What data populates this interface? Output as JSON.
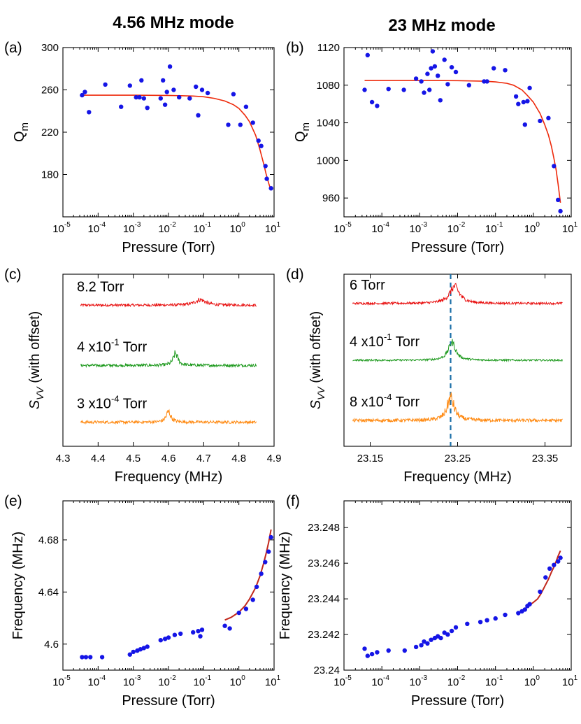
{
  "column_titles": [
    "4.56 MHz mode",
    "23 MHz mode"
  ],
  "colors": {
    "points": "#1515e6",
    "fit": "#ee2a0b",
    "fit_dark": "#c1271b",
    "red": "#e81010",
    "green": "#1f9a1f",
    "orange": "#ff8a12",
    "dashed": "#1b6fa8"
  },
  "chart_data": [
    {
      "panel": "(a)",
      "type": "scatter",
      "xlabel": "Pressure (Torr)",
      "ylabel": "Q_m",
      "xscale": "log",
      "xlim": [
        1e-05,
        10
      ],
      "ylim": [
        140,
        300
      ],
      "xticks": [
        1e-05,
        0.0001,
        0.001,
        0.01,
        0.1,
        1,
        10
      ],
      "xtick_labels": [
        [
          "10",
          "-5"
        ],
        [
          "10",
          "-4"
        ],
        [
          "10",
          "-3"
        ],
        [
          "10",
          "-2"
        ],
        [
          "10",
          "-1"
        ],
        [
          "10",
          "0"
        ],
        [
          "10",
          "1"
        ]
      ],
      "yticks": [
        180,
        220,
        260,
        300
      ],
      "ytick_labels": [
        "180",
        "220",
        "260",
        "300"
      ],
      "series": [
        {
          "kind": "points",
          "x": [
            3.5e-05,
            4.2e-05,
            5.5e-05,
            0.00016,
            0.00045,
            0.0008,
            0.0012,
            0.0015,
            0.0017,
            0.002,
            0.0025,
            0.006,
            0.007,
            0.008,
            0.009,
            0.011,
            0.014,
            0.02,
            0.04,
            0.06,
            0.07,
            0.09,
            0.13,
            0.5,
            0.7,
            1.1,
            1.6,
            2.5,
            3.6,
            4.3,
            5.7,
            6.2,
            8.2
          ],
          "y": [
            255,
            258,
            239,
            265,
            244,
            264,
            253,
            253,
            269,
            252,
            243,
            252,
            269,
            246,
            258,
            282,
            260,
            253,
            252,
            263,
            236,
            260,
            257,
            227,
            256,
            227,
            244,
            229,
            212,
            207,
            188,
            176,
            167
          ]
        },
        {
          "kind": "fit",
          "x": [
            3.5e-05,
            0.0001,
            0.001,
            0.01,
            0.05,
            0.1,
            0.2,
            0.4,
            0.7,
            1,
            1.5,
            2,
            3,
            4,
            5,
            6,
            7,
            8.2
          ],
          "y": [
            255,
            255,
            255,
            254.8,
            254.2,
            253.5,
            252,
            249.5,
            246,
            242.5,
            236,
            230,
            217,
            203,
            191,
            180,
            172,
            165
          ]
        }
      ]
    },
    {
      "panel": "(b)",
      "type": "scatter",
      "xlabel": "Pressure (Torr)",
      "ylabel": "Q_m",
      "xscale": "log",
      "xlim": [
        1e-05,
        10
      ],
      "ylim": [
        940,
        1120
      ],
      "xticks": [
        1e-05,
        0.0001,
        0.001,
        0.01,
        0.1,
        1,
        10
      ],
      "xtick_labels": [
        [
          "10",
          "-5"
        ],
        [
          "10",
          "-4"
        ],
        [
          "10",
          "-3"
        ],
        [
          "10",
          "-2"
        ],
        [
          "10",
          "-1"
        ],
        [
          "10",
          "0"
        ],
        [
          "10",
          "1"
        ]
      ],
      "yticks": [
        960,
        1000,
        1040,
        1080,
        1120
      ],
      "ytick_labels": [
        "960",
        "1000",
        "1040",
        "1080",
        "1120"
      ],
      "series": [
        {
          "kind": "points",
          "x": [
            3.5e-05,
            4.2e-05,
            5.5e-05,
            7.5e-05,
            0.00015,
            0.00038,
            0.0008,
            0.0011,
            0.0013,
            0.0016,
            0.0018,
            0.002,
            0.0022,
            0.0025,
            0.003,
            0.0035,
            0.0045,
            0.0055,
            0.007,
            0.009,
            0.02,
            0.05,
            0.06,
            0.09,
            0.18,
            0.35,
            0.4,
            0.55,
            0.6,
            0.7,
            0.8,
            1.5,
            2.5,
            3.5,
            4.5,
            5.2
          ],
          "y": [
            1075,
            1112,
            1062,
            1058,
            1076,
            1075,
            1087,
            1084,
            1072,
            1092,
            1075,
            1098,
            1116,
            1100,
            1090,
            1064,
            1107,
            1081,
            1099,
            1094,
            1080,
            1084,
            1084,
            1098,
            1096,
            1068,
            1060,
            1062,
            1038,
            1063,
            1077,
            1042,
            1045,
            994,
            958,
            946
          ]
        },
        {
          "kind": "fit",
          "x": [
            3.5e-05,
            0.0001,
            0.001,
            0.01,
            0.05,
            0.1,
            0.2,
            0.3,
            0.5,
            0.7,
            1,
            1.5,
            2,
            2.5,
            3,
            3.5,
            4,
            4.5,
            5.2
          ],
          "y": [
            1085,
            1085,
            1085,
            1084.8,
            1084.2,
            1083.5,
            1082,
            1080,
            1075,
            1069,
            1062,
            1050,
            1038,
            1027,
            1015,
            1002,
            990,
            975,
            955
          ]
        }
      ]
    },
    {
      "panel": "(c)",
      "type": "line",
      "xlabel": "Frequency (MHz)",
      "ylabel": "S_VV (with offset)",
      "xlim": [
        4.3,
        4.9
      ],
      "xticks": [
        4.3,
        4.4,
        4.5,
        4.6,
        4.7,
        4.8,
        4.9
      ],
      "xtick_labels": [
        "4.3",
        "4.4",
        "4.5",
        "4.6",
        "4.7",
        "4.8",
        "4.9"
      ],
      "series": [
        {
          "name_base": "8.2",
          "name_exp": "",
          "name_unit": "Torr",
          "color": "red",
          "x_range": [
            4.35,
            4.85
          ],
          "peak": 4.69,
          "width": 0.018,
          "amp": 0.8,
          "noise": 0.35,
          "level": 0.82
        },
        {
          "name_base": "4 x10",
          "name_exp": "-1",
          "name_unit": "Torr",
          "color": "green",
          "x_range": [
            4.35,
            4.85
          ],
          "peak": 4.62,
          "width": 0.008,
          "amp": 1.7,
          "noise": 0.4,
          "level": 0.47
        },
        {
          "name_base": "3 x10",
          "name_exp": "-4",
          "name_unit": "Torr",
          "color": "orange",
          "x_range": [
            4.35,
            4.85
          ],
          "peak": 4.6,
          "width": 0.008,
          "amp": 1.5,
          "noise": 0.4,
          "level": 0.14
        }
      ]
    },
    {
      "panel": "(d)",
      "type": "line",
      "xlabel": "Frequency (MHz)",
      "ylabel": "S_VV (with offset)",
      "xlim": [
        23.12,
        23.38
      ],
      "xticks": [
        23.15,
        23.25,
        23.35
      ],
      "xtick_labels": [
        "23.15",
        "23.25",
        "23.35"
      ],
      "vline": 23.242,
      "series": [
        {
          "name_base": "6",
          "name_exp": "",
          "name_unit": "Torr",
          "color": "red",
          "x_range": [
            23.13,
            23.37
          ],
          "peak": 23.2465,
          "width": 0.007,
          "amp": 2.4,
          "noise": 0.3,
          "level": 0.83
        },
        {
          "name_base": "4 x10",
          "name_exp": "-1",
          "name_unit": "Torr",
          "color": "green",
          "x_range": [
            23.13,
            23.37
          ],
          "peak": 23.2435,
          "width": 0.005,
          "amp": 2.6,
          "noise": 0.25,
          "level": 0.5
        },
        {
          "name_base": "8 x10",
          "name_exp": "-4",
          "name_unit": "Torr",
          "color": "orange",
          "x_range": [
            23.13,
            23.37
          ],
          "peak": 23.242,
          "width": 0.005,
          "amp": 3.2,
          "noise": 0.45,
          "level": 0.15
        }
      ]
    },
    {
      "panel": "(e)",
      "type": "scatter",
      "xlabel": "Pressure (Torr)",
      "ylabel": "Frequency (MHz)",
      "xscale": "log",
      "xlim": [
        1e-05,
        10
      ],
      "ylim": [
        4.58,
        4.71
      ],
      "xticks": [
        1e-05,
        0.0001,
        0.001,
        0.01,
        0.1,
        1,
        10
      ],
      "xtick_labels": [
        [
          "10",
          "-5"
        ],
        [
          "10",
          "-4"
        ],
        [
          "10",
          "-3"
        ],
        [
          "10",
          "-2"
        ],
        [
          "10",
          "-1"
        ],
        [
          "10",
          "0"
        ],
        [
          "10",
          "1"
        ]
      ],
      "yticks": [
        4.6,
        4.64,
        4.68
      ],
      "ytick_labels": [
        "4.6",
        "4.64",
        "4.68"
      ],
      "series": [
        {
          "kind": "points",
          "x": [
            3.5e-05,
            4.5e-05,
            6e-05,
            0.00013,
            0.0008,
            0.001,
            0.0013,
            0.0016,
            0.002,
            0.0025,
            0.006,
            0.008,
            0.01,
            0.015,
            0.022,
            0.05,
            0.07,
            0.08,
            0.09,
            0.4,
            0.55,
            1,
            1.6,
            2.5,
            3.2,
            4.3,
            5.6,
            7,
            8.2
          ],
          "y": [
            4.59,
            4.59,
            4.59,
            4.59,
            4.592,
            4.594,
            4.595,
            4.596,
            4.597,
            4.598,
            4.603,
            4.604,
            4.605,
            4.607,
            4.608,
            4.609,
            4.61,
            4.606,
            4.611,
            4.614,
            4.612,
            4.624,
            4.627,
            4.634,
            4.644,
            4.654,
            4.663,
            4.671,
            4.682
          ]
        },
        {
          "kind": "fit",
          "x": [
            0.4,
            0.6,
            1,
            1.5,
            2,
            3,
            4,
            5,
            6,
            7,
            8.2
          ],
          "y": [
            4.6185,
            4.6205,
            4.6245,
            4.6295,
            4.6345,
            4.6435,
            4.6525,
            4.6615,
            4.67,
            4.678,
            4.688
          ]
        }
      ]
    },
    {
      "panel": "(f)",
      "type": "scatter",
      "xlabel": "Pressure (Torr)",
      "ylabel": "Frequency (MHz)",
      "xscale": "log",
      "xlim": [
        1e-05,
        10
      ],
      "ylim": [
        23.24,
        23.2495
      ],
      "xticks": [
        1e-05,
        0.0001,
        0.001,
        0.01,
        0.1,
        1,
        10
      ],
      "xtick_labels": [
        [
          "10",
          "-5"
        ],
        [
          "10",
          "-4"
        ],
        [
          "10",
          "-3"
        ],
        [
          "10",
          "-2"
        ],
        [
          "10",
          "-1"
        ],
        [
          "10",
          "0"
        ],
        [
          "10",
          "1"
        ]
      ],
      "yticks": [
        23.24,
        23.242,
        23.244,
        23.246,
        23.248
      ],
      "ytick_labels": [
        "23.24",
        "23.242",
        "23.244",
        "23.246",
        "23.248"
      ],
      "series": [
        {
          "kind": "points",
          "x": [
            3.5e-05,
            4.2e-05,
            5.5e-05,
            7.5e-05,
            0.00015,
            0.0004,
            0.0008,
            0.0011,
            0.0013,
            0.0016,
            0.002,
            0.0025,
            0.003,
            0.0036,
            0.0045,
            0.0055,
            0.007,
            0.009,
            0.018,
            0.04,
            0.06,
            0.1,
            0.18,
            0.4,
            0.5,
            0.6,
            0.7,
            0.8,
            1.5,
            2.1,
            2.7,
            3.5,
            4.5,
            5.2
          ],
          "y": [
            23.2412,
            23.2408,
            23.2409,
            23.241,
            23.2411,
            23.2411,
            23.2413,
            23.2414,
            23.2416,
            23.2415,
            23.2417,
            23.2418,
            23.2419,
            23.2418,
            23.2421,
            23.242,
            23.2422,
            23.2424,
            23.2426,
            23.2427,
            23.2428,
            23.2429,
            23.2431,
            23.2432,
            23.2433,
            23.2434,
            23.2436,
            23.2437,
            23.2444,
            23.2452,
            23.2457,
            23.2459,
            23.2461,
            23.2463
          ]
        },
        {
          "kind": "fit",
          "x": [
            0.4,
            0.6,
            0.8,
            1,
            1.3,
            1.6,
            2,
            2.5,
            3,
            3.5,
            4,
            4.5,
            5.2
          ],
          "y": [
            23.2432,
            23.24345,
            23.24365,
            23.2438,
            23.244,
            23.2443,
            23.2447,
            23.2451,
            23.2455,
            23.2458,
            23.2461,
            23.2464,
            23.2467
          ]
        }
      ]
    }
  ]
}
